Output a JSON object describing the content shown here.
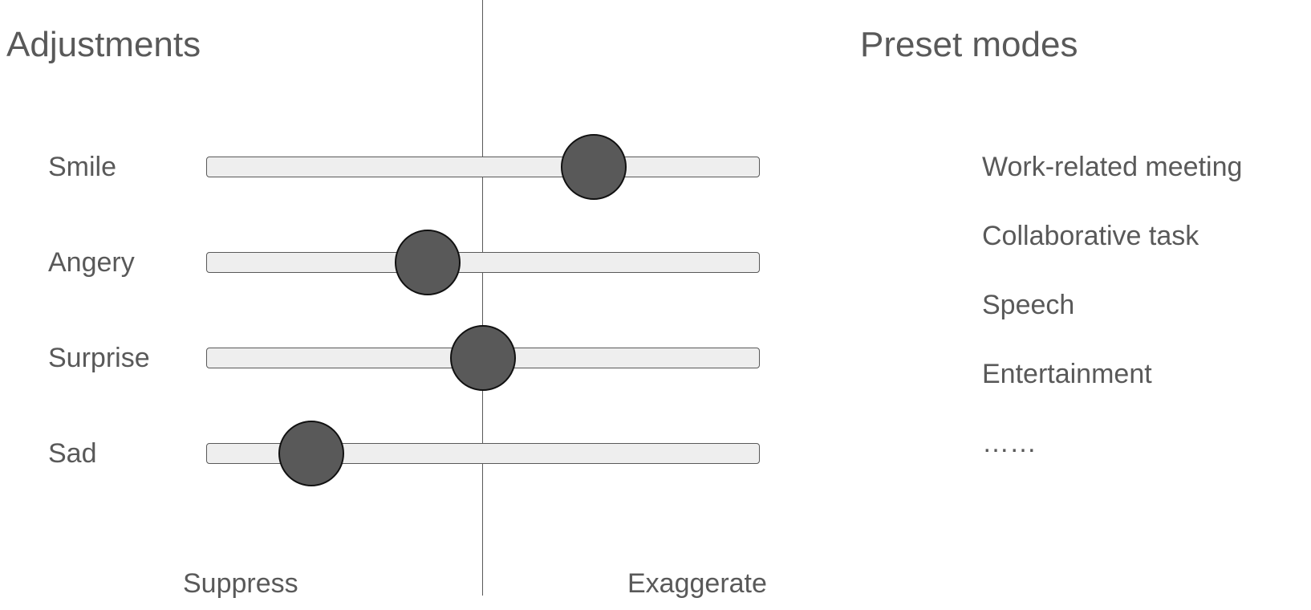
{
  "adjustments": {
    "title": "Adjustments",
    "axis": {
      "suppress_label": "Suppress",
      "exaggerate_label": "Exaggerate"
    },
    "sliders": [
      {
        "label": "Smile",
        "value": 0.7
      },
      {
        "label": "Angery",
        "value": 0.4
      },
      {
        "label": "Surprise",
        "value": 0.5
      },
      {
        "label": "Sad",
        "value": 0.19
      }
    ]
  },
  "presets": {
    "title": "Preset modes",
    "items": [
      "Work-related meeting",
      "Collaborative task",
      "Speech",
      "Entertainment",
      "……"
    ]
  }
}
